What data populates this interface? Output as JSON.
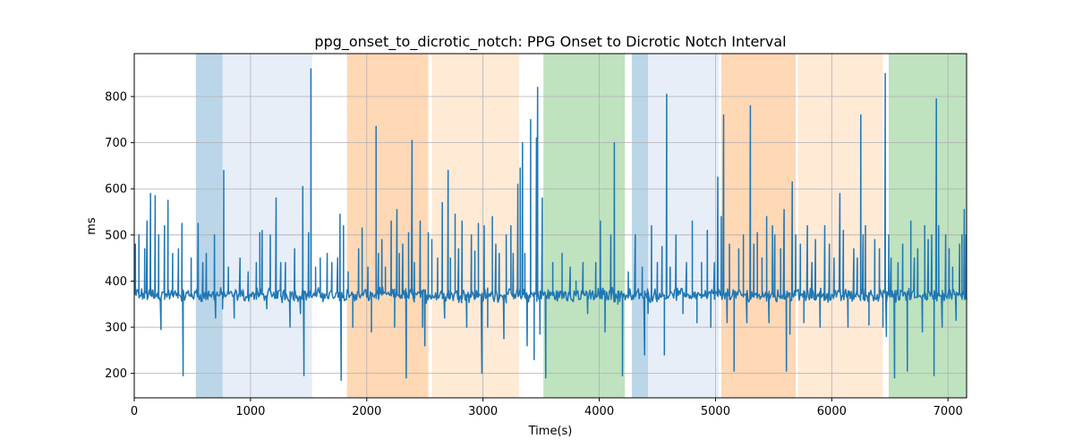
{
  "chart_data": {
    "type": "line",
    "title": "ppg_onset_to_dicrotic_notch: PPG Onset to Dicrotic Notch Interval",
    "xlabel": "Time(s)",
    "ylabel": "ms",
    "xlim": [
      0,
      7160
    ],
    "ylim": [
      147,
      893
    ],
    "grid": true,
    "xticks": [
      0,
      1000,
      2000,
      3000,
      4000,
      5000,
      6000,
      7000
    ],
    "xtick_labels": [
      "0",
      "1000",
      "2000",
      "3000",
      "4000",
      "5000",
      "6000",
      "7000"
    ],
    "yticks": [
      200,
      300,
      400,
      500,
      600,
      700,
      800
    ],
    "ytick_labels": [
      "200",
      "300",
      "400",
      "500",
      "600",
      "700",
      "800"
    ],
    "line_color": "#1f77b4",
    "bands": [
      {
        "x0": 530,
        "x1": 760,
        "color": "#1f77b4",
        "opacity": 0.3
      },
      {
        "x0": 760,
        "x1": 1530,
        "color": "#aec7e8",
        "opacity": 0.3
      },
      {
        "x0": 1830,
        "x1": 2530,
        "color": "#ff7f0e",
        "opacity": 0.3
      },
      {
        "x0": 2560,
        "x1": 3310,
        "color": "#ffbb78",
        "opacity": 0.3
      },
      {
        "x0": 3520,
        "x1": 4220,
        "color": "#2ca02c",
        "opacity": 0.3
      },
      {
        "x0": 4280,
        "x1": 4420,
        "color": "#1f77b4",
        "opacity": 0.3
      },
      {
        "x0": 4420,
        "x1": 5030,
        "color": "#aec7e8",
        "opacity": 0.3
      },
      {
        "x0": 5050,
        "x1": 5690,
        "color": "#ff7f0e",
        "opacity": 0.3
      },
      {
        "x0": 5710,
        "x1": 6440,
        "color": "#ffbb78",
        "opacity": 0.3
      },
      {
        "x0": 6490,
        "x1": 7160,
        "color": "#2ca02c",
        "opacity": 0.3
      }
    ],
    "series": [
      {
        "baseline": 370,
        "spikes": [
          [
            10,
            480
          ],
          [
            40,
            500
          ],
          [
            90,
            470
          ],
          [
            110,
            530
          ],
          [
            140,
            590
          ],
          [
            180,
            585
          ],
          [
            210,
            500
          ],
          [
            230,
            295
          ],
          [
            260,
            520
          ],
          [
            290,
            575
          ],
          [
            330,
            460
          ],
          [
            380,
            470
          ],
          [
            410,
            525
          ],
          [
            420,
            195
          ],
          [
            490,
            450
          ],
          [
            550,
            525
          ],
          [
            590,
            440
          ],
          [
            620,
            460
          ],
          [
            690,
            500
          ],
          [
            700,
            320
          ],
          [
            760,
            340
          ],
          [
            770,
            640
          ],
          [
            810,
            430
          ],
          [
            860,
            320
          ],
          [
            910,
            450
          ],
          [
            980,
            420
          ],
          [
            1050,
            440
          ],
          [
            1080,
            505
          ],
          [
            1100,
            510
          ],
          [
            1140,
            340
          ],
          [
            1170,
            500
          ],
          [
            1220,
            580
          ],
          [
            1260,
            440
          ],
          [
            1300,
            440
          ],
          [
            1340,
            300
          ],
          [
            1380,
            470
          ],
          [
            1430,
            330
          ],
          [
            1450,
            605
          ],
          [
            1460,
            195
          ],
          [
            1500,
            505
          ],
          [
            1520,
            860
          ],
          [
            1560,
            430
          ],
          [
            1600,
            450
          ],
          [
            1660,
            460
          ],
          [
            1700,
            440
          ],
          [
            1750,
            450
          ],
          [
            1770,
            545
          ],
          [
            1780,
            185
          ],
          [
            1800,
            520
          ],
          [
            1840,
            420
          ],
          [
            1880,
            300
          ],
          [
            1930,
            470
          ],
          [
            1960,
            515
          ],
          [
            2010,
            430
          ],
          [
            2040,
            290
          ],
          [
            2080,
            735
          ],
          [
            2100,
            460
          ],
          [
            2130,
            490
          ],
          [
            2160,
            430
          ],
          [
            2210,
            530
          ],
          [
            2240,
            300
          ],
          [
            2260,
            555
          ],
          [
            2280,
            460
          ],
          [
            2310,
            480
          ],
          [
            2340,
            190
          ],
          [
            2360,
            505
          ],
          [
            2390,
            705
          ],
          [
            2410,
            440
          ],
          [
            2460,
            530
          ],
          [
            2480,
            300
          ],
          [
            2500,
            260
          ],
          [
            2530,
            505
          ],
          [
            2560,
            490
          ],
          [
            2610,
            450
          ],
          [
            2650,
            570
          ],
          [
            2670,
            320
          ],
          [
            2700,
            640
          ],
          [
            2720,
            450
          ],
          [
            2760,
            545
          ],
          [
            2790,
            470
          ],
          [
            2820,
            530
          ],
          [
            2860,
            300
          ],
          [
            2900,
            500
          ],
          [
            2930,
            465
          ],
          [
            2960,
            525
          ],
          [
            2990,
            200
          ],
          [
            3010,
            520
          ],
          [
            3040,
            300
          ],
          [
            3080,
            540
          ],
          [
            3110,
            480
          ],
          [
            3140,
            460
          ],
          [
            3180,
            275
          ],
          [
            3200,
            500
          ],
          [
            3240,
            520
          ],
          [
            3260,
            460
          ],
          [
            3300,
            610
          ],
          [
            3320,
            645
          ],
          [
            3340,
            700
          ],
          [
            3360,
            460
          ],
          [
            3380,
            260
          ],
          [
            3410,
            750
          ],
          [
            3440,
            230
          ],
          [
            3460,
            710
          ],
          [
            3470,
            820
          ],
          [
            3490,
            285
          ],
          [
            3510,
            580
          ],
          [
            3540,
            190
          ],
          [
            3600,
            440
          ],
          [
            3680,
            460
          ],
          [
            3750,
            430
          ],
          [
            3800,
            400
          ],
          [
            3860,
            440
          ],
          [
            3900,
            330
          ],
          [
            3970,
            440
          ],
          [
            4010,
            530
          ],
          [
            4050,
            290
          ],
          [
            4100,
            500
          ],
          [
            4130,
            700
          ],
          [
            4160,
            350
          ],
          [
            4200,
            195
          ],
          [
            4250,
            420
          ],
          [
            4310,
            500
          ],
          [
            4370,
            430
          ],
          [
            4390,
            240
          ],
          [
            4420,
            330
          ],
          [
            4450,
            520
          ],
          [
            4500,
            440
          ],
          [
            4540,
            475
          ],
          [
            4560,
            240
          ],
          [
            4580,
            805
          ],
          [
            4610,
            430
          ],
          [
            4660,
            500
          ],
          [
            4720,
            330
          ],
          [
            4750,
            440
          ],
          [
            4800,
            530
          ],
          [
            4840,
            310
          ],
          [
            4880,
            440
          ],
          [
            4930,
            510
          ],
          [
            4960,
            300
          ],
          [
            4990,
            440
          ],
          [
            5020,
            625
          ],
          [
            5050,
            540
          ],
          [
            5070,
            760
          ],
          [
            5100,
            310
          ],
          [
            5120,
            480
          ],
          [
            5160,
            205
          ],
          [
            5200,
            470
          ],
          [
            5240,
            500
          ],
          [
            5270,
            310
          ],
          [
            5300,
            780
          ],
          [
            5330,
            480
          ],
          [
            5360,
            505
          ],
          [
            5400,
            450
          ],
          [
            5440,
            540
          ],
          [
            5460,
            310
          ],
          [
            5490,
            520
          ],
          [
            5510,
            500
          ],
          [
            5560,
            470
          ],
          [
            5590,
            555
          ],
          [
            5610,
            205
          ],
          [
            5640,
            285
          ],
          [
            5660,
            615
          ],
          [
            5690,
            500
          ],
          [
            5730,
            480
          ],
          [
            5760,
            310
          ],
          [
            5790,
            520
          ],
          [
            5830,
            440
          ],
          [
            5860,
            490
          ],
          [
            5900,
            300
          ],
          [
            5940,
            520
          ],
          [
            5980,
            480
          ],
          [
            6020,
            450
          ],
          [
            6070,
            590
          ],
          [
            6100,
            510
          ],
          [
            6140,
            300
          ],
          [
            6190,
            470
          ],
          [
            6220,
            450
          ],
          [
            6250,
            760
          ],
          [
            6270,
            500
          ],
          [
            6290,
            520
          ],
          [
            6320,
            305
          ],
          [
            6370,
            490
          ],
          [
            6410,
            470
          ],
          [
            6440,
            300
          ],
          [
            6460,
            850
          ],
          [
            6470,
            280
          ],
          [
            6490,
            500
          ],
          [
            6510,
            450
          ],
          [
            6540,
            190
          ],
          [
            6570,
            440
          ],
          [
            6610,
            480
          ],
          [
            6650,
            205
          ],
          [
            6680,
            530
          ],
          [
            6710,
            450
          ],
          [
            6740,
            470
          ],
          [
            6780,
            290
          ],
          [
            6800,
            520
          ],
          [
            6830,
            490
          ],
          [
            6860,
            500
          ],
          [
            6880,
            195
          ],
          [
            6900,
            795
          ],
          [
            6920,
            520
          ],
          [
            6950,
            300
          ],
          [
            6980,
            500
          ],
          [
            7010,
            470
          ],
          [
            7040,
            430
          ],
          [
            7070,
            315
          ],
          [
            7100,
            480
          ],
          [
            7120,
            500
          ],
          [
            7140,
            555
          ],
          [
            7155,
            500
          ]
        ]
      }
    ]
  }
}
